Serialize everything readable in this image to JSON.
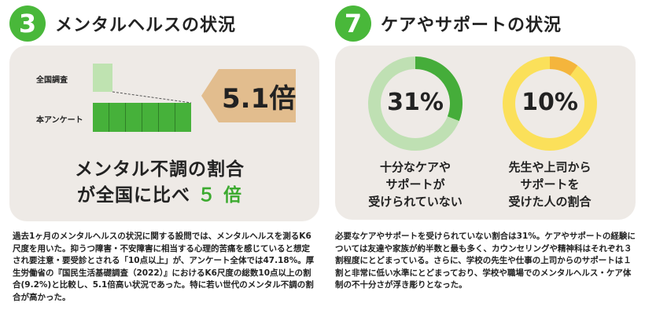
{
  "left": {
    "number": "3",
    "title": "メンタルヘルスの状況",
    "bar_labels": {
      "national": "全国調査",
      "survey": "本アンケート"
    },
    "ratio": "5.1倍",
    "headline_line1": "メンタル不調の割合",
    "headline_line2_prefix": "が全国に比べ",
    "headline_line2_value": "５",
    "headline_line2_suffix": "倍",
    "description": "過去1ヶ月のメンタルヘルスの状況に関する設問では、メンタルヘルスを測るK6尺度を用いた。抑うつ障害・不安障害に相当する心理的苦痛を感じていると想定され要注意・要受診とされる「10点以上」が、アンケート全体では47.18%。厚生労働省の『国民生活基礎調査（2022）』におけるK6尺度の総数10点以上の割合(9.2%)と比較し、5.1倍高い状況であった。特に若い世代のメンタル不調の割合が高かった。"
  },
  "right": {
    "number": "7",
    "title": "ケアやサポートの状況",
    "donut1": {
      "percent_label": "31%",
      "value": 0.31,
      "caption_lines": [
        "十分なケアや",
        "サポートが",
        "受けられていない"
      ],
      "color_fill": "#45ad3a",
      "color_rest": "#bfe0b3"
    },
    "donut2": {
      "percent_label": "10%",
      "value": 0.1,
      "caption_lines": [
        "先生や上司から",
        "サポートを",
        "受けた人の割合"
      ],
      "color_fill": "#f4b53c",
      "color_rest": "#fbe05a"
    },
    "description": "必要なケアやサポートを受けられていない割合は31%。ケアやサポートの経験については友達や家族が約半数と最も多く、カウンセリングや精神科はそれぞれ３割程度にとどまっている。さらに、学校の先生や仕事の上司からのサポートは１割と非常に低い水準にとどまっており、学校や職場でのメンタルヘルス・ケア体制の不十分さが浮き彫りとなった。"
  },
  "colors": {
    "accent_green": "#49b83a",
    "card_bg": "#eeeae6",
    "ratio_box": "#e2bd8e"
  }
}
